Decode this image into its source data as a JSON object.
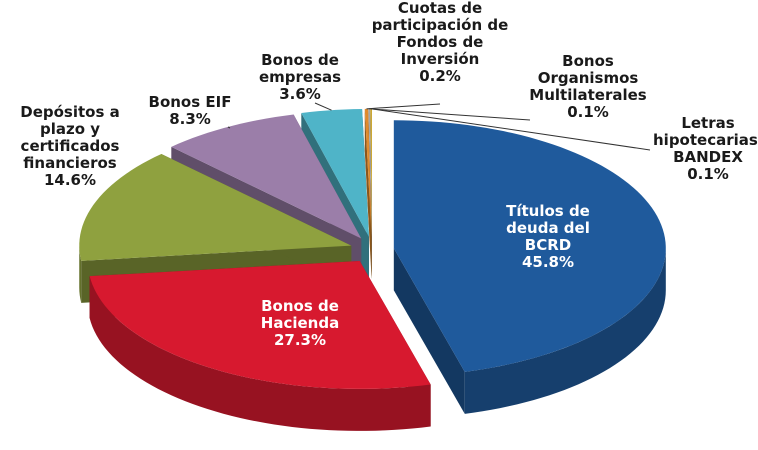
{
  "chart_data": {
    "type": "pie3d",
    "categories": [
      "Títulos de deuda del BCRD",
      "Bonos de Hacienda",
      "Depósitos a plazo y certificados financieros",
      "Bonos EIF",
      "Bonos de empresas",
      "Cuotas de participación de Fondos de Inversión",
      "Bonos Organismos Multilaterales",
      "Letras hipotecarias-BANDEX"
    ],
    "values": [
      45.8,
      27.3,
      14.6,
      8.3,
      3.6,
      0.2,
      0.1,
      0.1
    ],
    "value_labels": [
      "45.8%",
      "27.3%",
      "14.6%",
      "8.3%",
      "3.6%",
      "0.2%",
      "0.1%",
      "0.1%"
    ],
    "colors": [
      "#1f5a9c",
      "#d7192f",
      "#8fa13f",
      "#9b7ea9",
      "#4fb4c8",
      "#e08a2c",
      "#a6a6a6",
      "#c9a227"
    ]
  }
}
